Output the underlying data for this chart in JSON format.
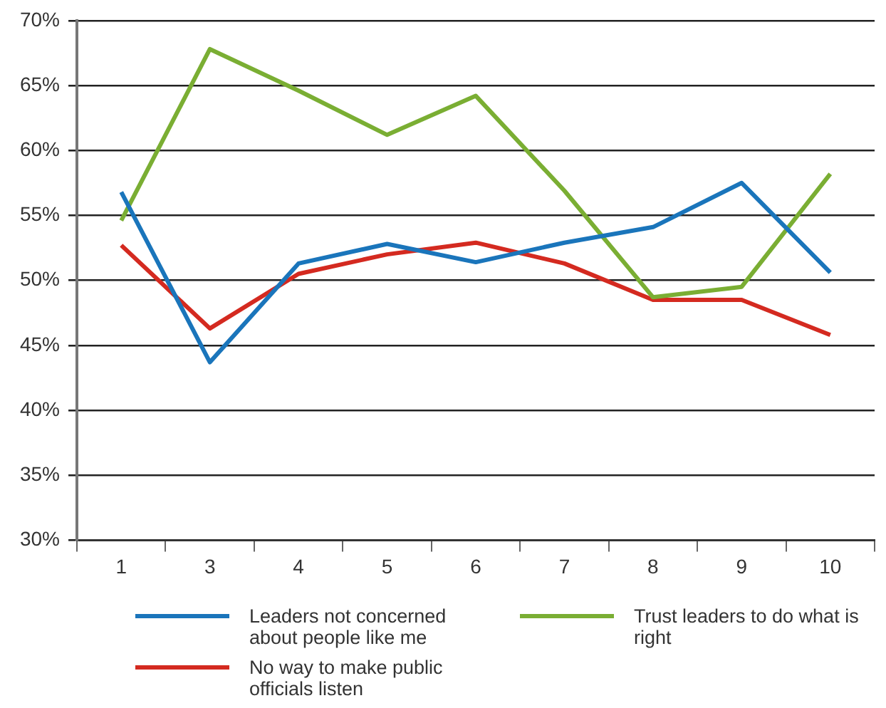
{
  "chart_data": {
    "type": "line",
    "categories": [
      "1",
      "3",
      "4",
      "5",
      "6",
      "7",
      "8",
      "9",
      "10"
    ],
    "series": [
      {
        "name": "Leaders not concerned about people like me",
        "color": "#1a75bb",
        "values": [
          56.8,
          43.7,
          51.3,
          52.8,
          51.4,
          52.9,
          54.1,
          57.5,
          50.6
        ]
      },
      {
        "name": "Trust leaders to do what is right",
        "color": "#7aae33",
        "values": [
          54.6,
          67.8,
          64.6,
          61.2,
          64.2,
          56.9,
          48.7,
          49.5,
          58.2
        ]
      },
      {
        "name": "No way to make public officials listen",
        "color": "#d42a20",
        "values": [
          52.7,
          46.3,
          50.5,
          52.0,
          52.9,
          51.3,
          48.5,
          48.5,
          45.8
        ]
      }
    ],
    "ylim": [
      30,
      70
    ],
    "yticks": [
      {
        "value": 30,
        "label": "30%"
      },
      {
        "value": 35,
        "label": "35%"
      },
      {
        "value": 40,
        "label": "40%"
      },
      {
        "value": 45,
        "label": "45%"
      },
      {
        "value": 50,
        "label": "50%"
      },
      {
        "value": 55,
        "label": "55%"
      },
      {
        "value": 60,
        "label": "60%"
      },
      {
        "value": 65,
        "label": "65%"
      },
      {
        "value": 70,
        "label": "70%"
      }
    ],
    "grid": "y",
    "legend": "bottom",
    "marker": "none",
    "line_style": "solid"
  }
}
